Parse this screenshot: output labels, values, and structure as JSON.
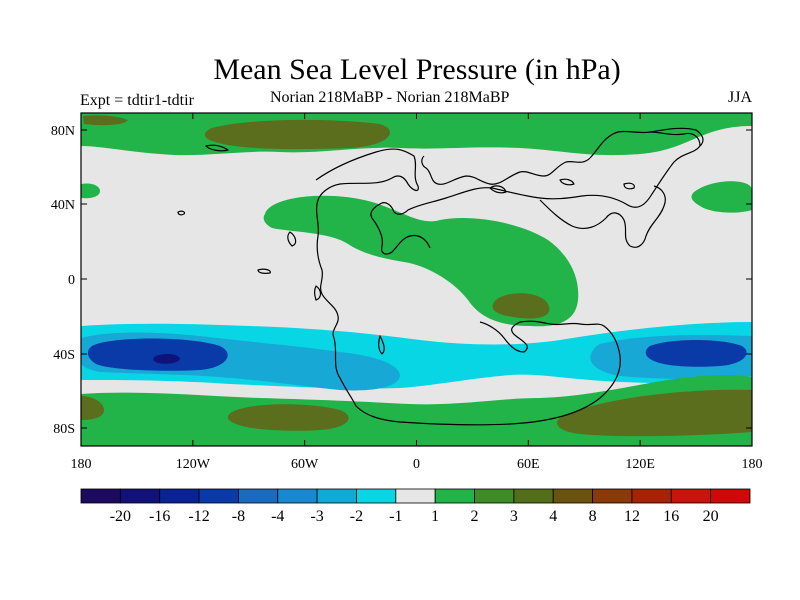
{
  "title": "Mean Sea Level Pressure (in hPa)",
  "left_label": "Expt = tdtir1-tdtir",
  "center_label": "Norian   218MaBP - Norian   218MaBP",
  "right_label": "JJA",
  "y_ticks": [
    "80N",
    "40N",
    "0",
    "40S",
    "80S"
  ],
  "x_ticks": [
    "180",
    "120W",
    "60W",
    "0",
    "60E",
    "120E",
    "180"
  ],
  "colorbar": {
    "labels": [
      "-20",
      "-16",
      "-12",
      "-8",
      "-4",
      "-3",
      "-2",
      "-1",
      "1",
      "2",
      "3",
      "4",
      "8",
      "12",
      "16",
      "20"
    ],
    "colors": [
      "#1c0a5e",
      "#10127a",
      "#0a2296",
      "#0a3aa8",
      "#1a6ac0",
      "#1888d0",
      "#10aad6",
      "#08d6e4",
      "#e6e6e6",
      "#22b448",
      "#3e8c28",
      "#526e18",
      "#6a5210",
      "#8a3a08",
      "#a82206",
      "#c8140a",
      "#d00808"
    ]
  },
  "palette": {
    "light_green": "#22b448",
    "dark_green": "#5a6e1e",
    "cyan": "#08d6e4",
    "mid_blue": "#18a8d6",
    "dark_blue": "#0a3aa8",
    "neutral": "#e6e6e6"
  }
}
